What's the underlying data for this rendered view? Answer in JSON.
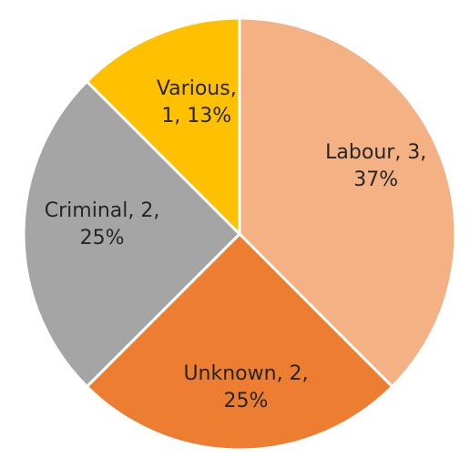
{
  "chart_data": {
    "type": "pie",
    "slices": [
      {
        "name": "Labour",
        "value": 3,
        "percent": 37,
        "label_lines": [
          "Labour, 3,",
          "37%"
        ],
        "color": "#F4B183"
      },
      {
        "name": "Unknown",
        "value": 2,
        "percent": 25,
        "label_lines": [
          "Unknown, 2,",
          "25%"
        ],
        "color": "#ED7D31"
      },
      {
        "name": "Criminal",
        "value": 2,
        "percent": 25,
        "label_lines": [
          "Criminal, 2,",
          "25%"
        ],
        "color": "#A5A5A5"
      },
      {
        "name": "Various",
        "value": 1,
        "percent": 13,
        "label_lines": [
          "Various,",
          "1, 13%"
        ],
        "color": "#FFC000"
      }
    ],
    "start_angle_deg": 0,
    "direction": "clockwise",
    "slice_border_color": "#FFFFFF",
    "legend": "none",
    "data_labels": "inside"
  }
}
